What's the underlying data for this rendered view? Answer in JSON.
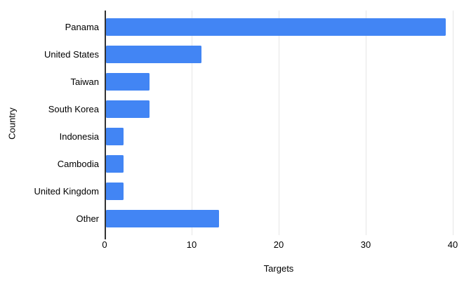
{
  "chart_data": {
    "type": "bar",
    "orientation": "horizontal",
    "title": "",
    "xlabel": "Targets",
    "ylabel": "Country",
    "categories": [
      "Panama",
      "United States",
      "Taiwan",
      "South Korea",
      "Indonesia",
      "Cambodia",
      "United Kingdom",
      "Other"
    ],
    "values": [
      39,
      11,
      5,
      5,
      2,
      2,
      2,
      13
    ],
    "xlim": [
      0,
      40
    ],
    "xticks": [
      0,
      10,
      20,
      30,
      40
    ],
    "grid": "vertical-gridlines-only",
    "legend_position": "none",
    "colors": {
      "bar": "#4285f4",
      "gridline": "#e6e6e6",
      "axis_line": "#333333",
      "text": "#000000",
      "background": "#ffffff"
    }
  }
}
